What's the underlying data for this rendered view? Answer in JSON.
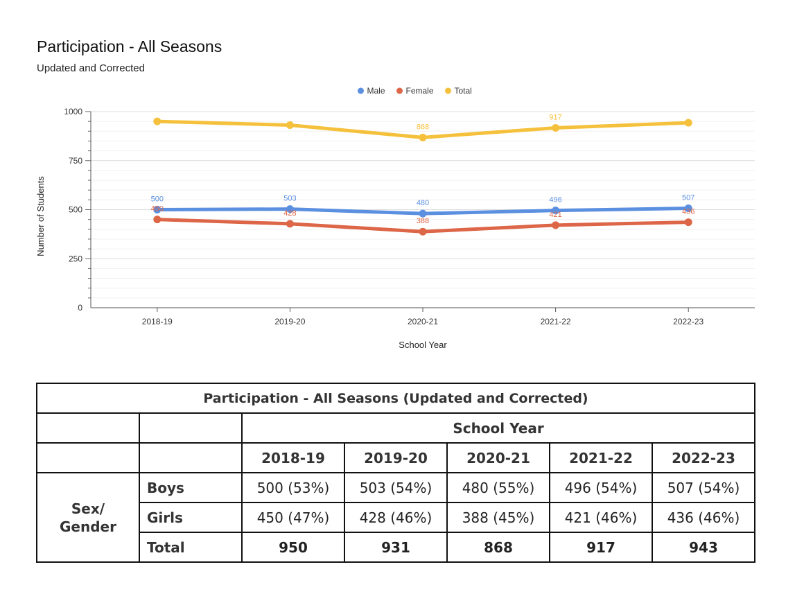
{
  "chart_data": {
    "type": "line",
    "title": "Participation - All Seasons",
    "subtitle": "Updated and Corrected",
    "xlabel": "School Year",
    "ylabel": "Number of Students",
    "categories": [
      "2018-19",
      "2019-20",
      "2020-21",
      "2021-22",
      "2022-23"
    ],
    "ylim": [
      0,
      1000
    ],
    "yticks": [
      0,
      250,
      500,
      750,
      1000
    ],
    "legend_position": "top",
    "grid": true,
    "series": [
      {
        "name": "Male",
        "color": "#5b8fe0",
        "values": [
          500,
          503,
          480,
          496,
          507
        ],
        "labels": [
          "500",
          "503",
          "480",
          "496",
          "507"
        ]
      },
      {
        "name": "Female",
        "color": "#dd6648",
        "values": [
          450,
          428,
          388,
          421,
          436
        ],
        "labels": [
          "450",
          "428",
          "388",
          "421",
          "436"
        ]
      },
      {
        "name": "Total",
        "color": "#f5c13c",
        "values": [
          950,
          931,
          868,
          917,
          943
        ],
        "labels": [
          "",
          "",
          "868",
          "917",
          ""
        ]
      }
    ]
  },
  "table": {
    "caption": "Participation - All Seasons (Updated and Corrected)",
    "school_year_header": "School Year",
    "years": [
      "2018-19",
      "2019-20",
      "2020-21",
      "2021-22",
      "2022-23"
    ],
    "group_label_line1": "Sex/",
    "group_label_line2": "Gender",
    "rows": [
      {
        "label": "Boys",
        "cells": [
          "500 (53%)",
          "503 (54%)",
          "480 (55%)",
          "496 (54%)",
          "507 (54%)"
        ]
      },
      {
        "label": "Girls",
        "cells": [
          "450 (47%)",
          "428 (46%)",
          "388 (45%)",
          "421 (46%)",
          "436 (46%)"
        ]
      },
      {
        "label": "Total",
        "cells": [
          "950",
          "931",
          "868",
          "917",
          "943"
        ]
      }
    ]
  }
}
